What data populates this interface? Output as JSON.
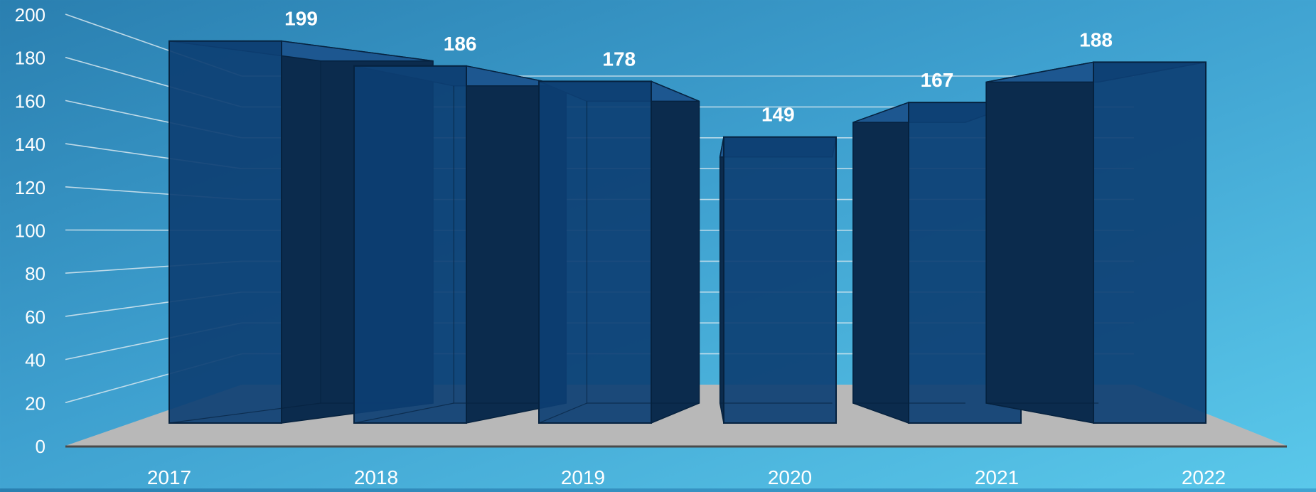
{
  "chart_data": {
    "type": "bar",
    "categories": [
      "2017",
      "2018",
      "2019",
      "2020",
      "2021",
      "2022"
    ],
    "values": [
      199,
      186,
      178,
      149,
      167,
      188
    ],
    "title": "",
    "xlabel": "",
    "ylabel": "",
    "ylim": [
      0,
      200
    ],
    "yticks": [
      "0",
      "20",
      "40",
      "60",
      "80",
      "100",
      "120",
      "140",
      "160",
      "180",
      "200"
    ],
    "grid": true,
    "style": "3d-perspective",
    "colors": {
      "bar_front": "#0d3f73",
      "bar_side": "#0b2b4d",
      "bar_top": "#1d5790",
      "bar_edge": "#06223f",
      "floor": "#b8b8b8",
      "grid_line": "#d8e8f0",
      "label_text": "#ffffff"
    }
  }
}
